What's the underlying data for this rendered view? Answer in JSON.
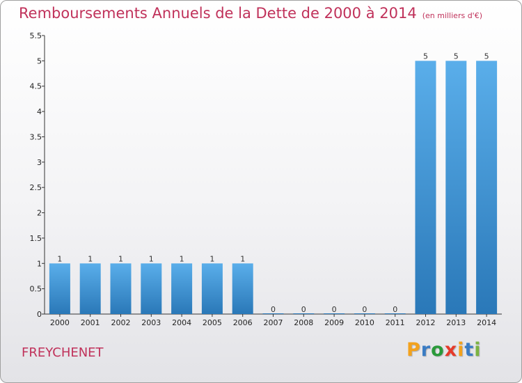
{
  "chart_data": {
    "type": "bar",
    "title": "Remboursements Annuels de la Dette de 2000 à 2014",
    "subtitle": "(en milliers d'€)",
    "categories": [
      "2000",
      "2001",
      "2002",
      "2003",
      "2004",
      "2005",
      "2006",
      "2007",
      "2008",
      "2009",
      "2010",
      "2011",
      "2012",
      "2013",
      "2014"
    ],
    "values": [
      1,
      1,
      1,
      1,
      1,
      1,
      1,
      0,
      0,
      0,
      0,
      0,
      5,
      5,
      5
    ],
    "data_labels": [
      "1",
      "1",
      "1",
      "1",
      "1",
      "1",
      "1",
      "0",
      "0",
      "0",
      "0",
      "0",
      "5",
      "5",
      "5"
    ],
    "yticks": [
      "0",
      "0.5",
      "1",
      "1.5",
      "2",
      "2.5",
      "3",
      "3.5",
      "4",
      "4.5",
      "5",
      "5.5"
    ],
    "ylim": [
      0,
      5.5
    ],
    "xlabel": "",
    "ylabel": "",
    "grid": false,
    "bar_color_top": "#5aaeea",
    "bar_color_bottom": "#2a78b8"
  },
  "footer": {
    "commune": "FREYCHENET",
    "logo_letters": [
      "P",
      "r",
      "o",
      "x",
      "i",
      "t",
      "i"
    ],
    "logo_colors": [
      "#f3a21d",
      "#3a7cc4",
      "#2a9a3a",
      "#e63a2a",
      "#f3a21d",
      "#3a7cc4",
      "#7cb342"
    ]
  }
}
